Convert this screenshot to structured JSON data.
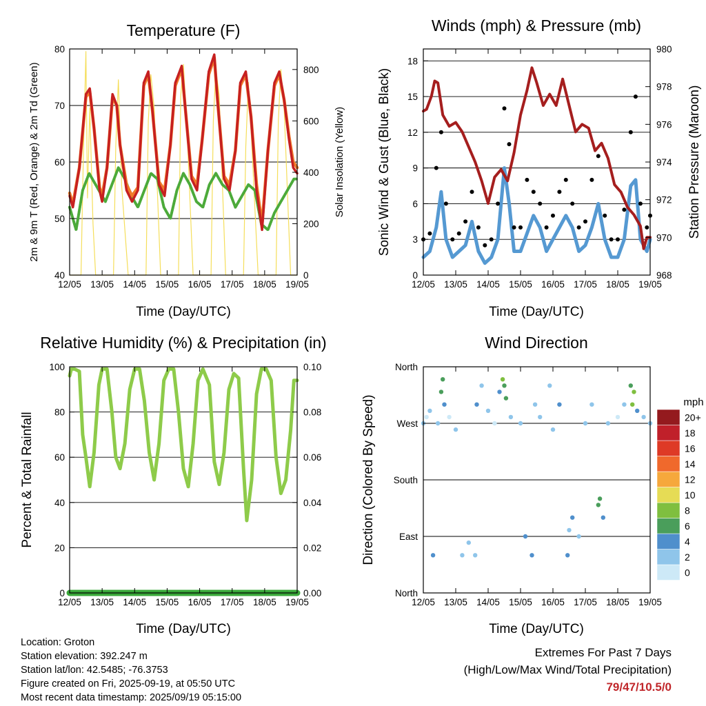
{
  "colors": {
    "temp_2m": "#c62020",
    "temp_9m": "#f07a2a",
    "dewpoint": "#4caa3a",
    "solar": "#f5de5a",
    "wind": "#5599d2",
    "gust": "#000000",
    "pressure": "#a51e1e",
    "rh": "#8ecb4a",
    "precip": "#3aa83a"
  },
  "x_ticks": [
    "12/05",
    "13/05",
    "14/05",
    "15/05",
    "16/05",
    "17/05",
    "18/05",
    "19/05"
  ],
  "panels": {
    "temperature": {
      "title": "Temperature (F)",
      "xlabel": "Time (Day/UTC)",
      "ylabel_left": "2m & 9m T (Red, Orange) & 2m Td (Green)",
      "ylabel_right": "Solar Insolation (Yellow)",
      "yticks_left": [
        "40",
        "50",
        "60",
        "70",
        "80"
      ],
      "yticks_right": [
        "0",
        "200",
        "400",
        "600",
        "800"
      ]
    },
    "winds": {
      "title": "Winds (mph) & Pressure (mb)",
      "xlabel": "Time (Day/UTC)",
      "ylabel_left": "Sonic Wind & Gust (Blue, Black)",
      "ylabel_right": "Station Pressure (Maroon)",
      "yticks_left": [
        "0",
        "3",
        "6",
        "9",
        "12",
        "15",
        "18"
      ],
      "yticks_right": [
        "968",
        "970",
        "972",
        "974",
        "976",
        "978",
        "980"
      ]
    },
    "humidity": {
      "title": "Relative Humidity (%) & Precipitation (in)",
      "xlabel": "Time (Day/UTC)",
      "ylabel_left": "Percent & Total Rainfall",
      "yticks_left": [
        "0",
        "20",
        "40",
        "60",
        "80",
        "100"
      ],
      "yticks_right": [
        "0.00",
        "0.02",
        "0.04",
        "0.06",
        "0.08",
        "0.10"
      ]
    },
    "direction": {
      "title": "Wind Direction",
      "xlabel": "Time (Day/UTC)",
      "ylabel_left": "Direction (Colored By Speed)",
      "yticks_left": [
        "North",
        "East",
        "South",
        "West",
        "North"
      ],
      "colorbar_title": "mph",
      "colorbar_labels": [
        "0",
        "2",
        "4",
        "6",
        "8",
        "10",
        "12",
        "14",
        "16",
        "18",
        "20+"
      ],
      "colorbar_colors": [
        "#cde9f7",
        "#8fc5ea",
        "#4f8fcc",
        "#4a9e5b",
        "#7fbf3f",
        "#e6dc55",
        "#f6a83c",
        "#f0692c",
        "#de3a26",
        "#c0202a",
        "#941a1e"
      ]
    }
  },
  "info": {
    "location": "Location: Groton",
    "elevation": "Station elevation: 392.247 m",
    "latlon": "Station lat/lon: 42.5485; -76.3753",
    "created": "Figure created on Fri, 2025-09-19, at 05:50 UTC",
    "recent": "Most recent data timestamp: 2025/09/19 05:15:00",
    "extremes_title": "Extremes For Past 7 Days",
    "extremes_subtitle": "(High/Low/Max Wind/Total Precipitation)",
    "extremes_value": "79/47/10.5/0"
  },
  "chart_data": [
    {
      "type": "line",
      "title": "Temperature (F)",
      "xlabel": "Time (Day/UTC)",
      "ylabel": "2m & 9m T (Red, Orange) & 2m Td (Green)",
      "y2label": "Solar Insolation (Yellow)",
      "x_range": [
        0,
        7
      ],
      "ylim": [
        40,
        80
      ],
      "y2lim": [
        0,
        880
      ],
      "grid": true,
      "series": [
        {
          "name": "2m T",
          "axis": "left",
          "x": [
            0,
            0.1,
            0.3,
            0.5,
            0.62,
            0.75,
            0.92,
            1.0,
            1.15,
            1.32,
            1.45,
            1.55,
            1.75,
            1.92,
            2.1,
            2.28,
            2.42,
            2.55,
            2.75,
            2.92,
            3.1,
            3.25,
            3.45,
            3.55,
            3.75,
            3.92,
            4.08,
            4.28,
            4.45,
            4.55,
            4.75,
            4.92,
            5.1,
            5.25,
            5.42,
            5.58,
            5.75,
            5.92,
            6.1,
            6.3,
            6.45,
            6.6,
            6.75,
            6.88,
            7.0
          ],
          "values": [
            54,
            52,
            59,
            72,
            73,
            66,
            55,
            53,
            59,
            72,
            70,
            63,
            55,
            53,
            55,
            74,
            76,
            69,
            56,
            54,
            63,
            74,
            77,
            70,
            57,
            55,
            64,
            76,
            79,
            71,
            57,
            55,
            62,
            74,
            76,
            68,
            55,
            48,
            62,
            74,
            76,
            71,
            64,
            59,
            58
          ]
        },
        {
          "name": "9m T",
          "axis": "left",
          "x": [
            0,
            0.1,
            0.3,
            0.5,
            0.62,
            0.75,
            0.92,
            1.0,
            1.15,
            1.32,
            1.45,
            1.55,
            1.75,
            1.92,
            2.1,
            2.28,
            2.42,
            2.55,
            2.75,
            2.92,
            3.1,
            3.25,
            3.45,
            3.55,
            3.75,
            3.92,
            4.08,
            4.28,
            4.45,
            4.55,
            4.75,
            4.92,
            5.1,
            5.25,
            5.42,
            5.58,
            5.75,
            5.92,
            6.1,
            6.3,
            6.45,
            6.6,
            6.75,
            6.88,
            7.0
          ],
          "values": [
            54.5,
            52.5,
            59,
            71.5,
            72.5,
            66,
            55.5,
            54,
            59,
            71.5,
            70,
            63,
            56,
            54,
            55.5,
            73.5,
            75.5,
            69,
            56.5,
            55,
            63,
            73.5,
            76.5,
            70,
            57.5,
            56,
            64,
            75.5,
            78.5,
            71,
            57.5,
            56,
            62,
            73.5,
            75.5,
            68,
            56,
            49,
            62,
            73.5,
            75.5,
            71,
            64.5,
            60,
            59
          ]
        },
        {
          "name": "2m Td",
          "axis": "left",
          "x": [
            0,
            0.2,
            0.4,
            0.6,
            0.9,
            1.1,
            1.3,
            1.5,
            1.7,
            1.9,
            2.1,
            2.3,
            2.5,
            2.7,
            2.9,
            3.1,
            3.3,
            3.5,
            3.7,
            3.9,
            4.1,
            4.3,
            4.5,
            4.7,
            4.9,
            5.1,
            5.3,
            5.5,
            5.7,
            5.9,
            6.1,
            6.3,
            6.5,
            6.7,
            6.9,
            7.0
          ],
          "values": [
            52,
            48,
            55,
            58,
            55,
            53,
            56,
            59,
            57,
            54,
            52,
            55,
            58,
            57,
            52,
            50,
            55,
            58,
            56,
            53,
            52,
            56,
            58,
            56,
            55,
            52,
            54,
            56,
            55,
            49,
            48,
            51,
            53,
            55,
            57,
            57
          ]
        },
        {
          "name": "Solar Insolation",
          "axis": "right",
          "x": [
            0,
            0.35,
            0.42,
            0.5,
            0.55,
            0.62,
            0.72,
            0.8,
            1.35,
            1.42,
            1.5,
            1.6,
            1.8,
            2.35,
            2.42,
            2.5,
            2.6,
            2.8,
            3.35,
            3.42,
            3.5,
            3.6,
            3.8,
            4.35,
            4.42,
            4.5,
            4.6,
            4.8,
            5.35,
            5.42,
            5.5,
            5.6,
            5.8,
            6.35,
            6.42,
            6.5,
            6.6,
            6.8,
            7.0
          ],
          "values": [
            0,
            0,
            450,
            870,
            300,
            650,
            200,
            0,
            0,
            500,
            760,
            350,
            0,
            0,
            600,
            780,
            650,
            0,
            0,
            700,
            820,
            600,
            0,
            0,
            600,
            800,
            700,
            0,
            0,
            500,
            750,
            520,
            0,
            0,
            600,
            800,
            650,
            0,
            0
          ]
        }
      ]
    },
    {
      "type": "line",
      "title": "Winds (mph) & Pressure (mb)",
      "xlabel": "Time (Day/UTC)",
      "ylabel": "Sonic Wind & Gust (Blue, Black)",
      "y2label": "Station Pressure (Maroon)",
      "x_range": [
        0,
        7
      ],
      "ylim": [
        0,
        19
      ],
      "y2lim": [
        968,
        980
      ],
      "grid": true,
      "series": [
        {
          "name": "Sonic Wind",
          "axis": "left",
          "x": [
            0,
            0.2,
            0.4,
            0.55,
            0.7,
            0.9,
            1.1,
            1.3,
            1.5,
            1.7,
            1.9,
            2.1,
            2.3,
            2.5,
            2.65,
            2.8,
            3.0,
            3.2,
            3.4,
            3.6,
            3.8,
            4.0,
            4.2,
            4.4,
            4.6,
            4.8,
            5.0,
            5.2,
            5.4,
            5.6,
            5.8,
            6.0,
            6.2,
            6.4,
            6.55,
            6.7,
            6.9,
            7.0
          ],
          "values": [
            1.5,
            2,
            4,
            7,
            3,
            1.5,
            2,
            2.5,
            4.5,
            2,
            1,
            1.5,
            3,
            9,
            6,
            2,
            2,
            3.5,
            5,
            4,
            2,
            3,
            4,
            5,
            4,
            2,
            2.5,
            4,
            6,
            3,
            1.5,
            1.5,
            3,
            7.5,
            8,
            3,
            2,
            3
          ]
        },
        {
          "name": "Gust",
          "axis": "left",
          "x": [
            0,
            0.2,
            0.4,
            0.55,
            0.7,
            0.9,
            1.1,
            1.3,
            1.5,
            1.7,
            1.9,
            2.1,
            2.3,
            2.5,
            2.65,
            2.8,
            3.0,
            3.2,
            3.4,
            3.6,
            3.8,
            4.0,
            4.2,
            4.4,
            4.6,
            4.8,
            5.0,
            5.2,
            5.4,
            5.6,
            5.8,
            6.0,
            6.2,
            6.4,
            6.55,
            6.7,
            6.9,
            7.0
          ],
          "values": [
            3,
            3.5,
            9,
            12,
            6,
            3,
            3.5,
            4.5,
            7,
            4,
            2.5,
            3,
            6,
            14,
            11,
            4,
            4,
            8,
            7,
            6,
            4,
            5,
            7,
            8,
            6,
            4,
            4.5,
            8,
            10,
            5,
            3,
            3,
            5.5,
            12,
            15,
            6,
            4,
            5
          ]
        },
        {
          "name": "Station Pressure",
          "axis": "right",
          "x": [
            0,
            0.1,
            0.25,
            0.35,
            0.45,
            0.6,
            0.8,
            1.0,
            1.2,
            1.4,
            1.6,
            1.8,
            2.0,
            2.2,
            2.4,
            2.6,
            2.8,
            3.0,
            3.2,
            3.35,
            3.5,
            3.7,
            3.9,
            4.1,
            4.3,
            4.5,
            4.7,
            4.9,
            5.1,
            5.3,
            5.5,
            5.7,
            5.9,
            6.1,
            6.3,
            6.5,
            6.7,
            6.8,
            6.9,
            7.0
          ],
          "values": [
            976.7,
            976.8,
            977.5,
            978.3,
            978.2,
            976.5,
            975.9,
            976.1,
            975.6,
            974.8,
            974.0,
            973.0,
            971.8,
            973.2,
            973.6,
            973.0,
            974.5,
            976.5,
            977.8,
            979.0,
            978.2,
            977.0,
            977.6,
            977.0,
            978.4,
            977.0,
            975.6,
            976.0,
            975.8,
            974.6,
            975.0,
            974.2,
            972.8,
            972.4,
            971.6,
            971.2,
            970.6,
            969.4,
            970.0,
            970.0
          ]
        }
      ]
    },
    {
      "type": "line",
      "title": "Relative Humidity (%) & Precipitation (in)",
      "xlabel": "Time (Day/UTC)",
      "ylabel": "Percent & Total Rainfall",
      "x_range": [
        0,
        7
      ],
      "ylim": [
        0,
        100
      ],
      "y2lim": [
        0,
        0.1
      ],
      "grid": true,
      "series": [
        {
          "name": "Relative Humidity",
          "axis": "left",
          "x": [
            0,
            0.05,
            0.15,
            0.3,
            0.4,
            0.5,
            0.62,
            0.75,
            0.9,
            1.0,
            1.15,
            1.3,
            1.42,
            1.55,
            1.7,
            1.85,
            2.0,
            2.15,
            2.3,
            2.45,
            2.6,
            2.75,
            2.9,
            3.05,
            3.2,
            3.35,
            3.5,
            3.65,
            3.8,
            3.95,
            4.1,
            4.3,
            4.45,
            4.6,
            4.75,
            4.9,
            5.05,
            5.2,
            5.35,
            5.45,
            5.6,
            5.75,
            5.9,
            6.05,
            6.2,
            6.35,
            6.5,
            6.65,
            6.8,
            6.9,
            7.0
          ],
          "values": [
            96,
            99,
            99,
            98,
            70,
            60,
            47,
            62,
            92,
            99,
            99,
            80,
            60,
            55,
            66,
            90,
            99,
            99,
            85,
            62,
            50,
            66,
            94,
            99,
            99,
            80,
            55,
            47,
            66,
            94,
            99,
            92,
            58,
            48,
            62,
            90,
            97,
            95,
            55,
            32,
            50,
            88,
            99,
            99,
            94,
            60,
            44,
            50,
            72,
            94,
            94
          ]
        },
        {
          "name": "Total Rainfall",
          "axis": "right",
          "x": [
            0,
            7
          ],
          "values": [
            0,
            0
          ]
        }
      ]
    },
    {
      "type": "scatter",
      "title": "Wind Direction",
      "xlabel": "Time (Day/UTC)",
      "ylabel": "Direction (Colored By Speed)",
      "x_range": [
        0,
        7
      ],
      "ylim": [
        0,
        360
      ],
      "y_tick_labels": [
        "North",
        "East",
        "South",
        "West",
        "North"
      ],
      "colorbar": {
        "title": "mph",
        "levels": [
          "0",
          "2",
          "4",
          "6",
          "8",
          "10",
          "12",
          "14",
          "16",
          "18",
          "20+"
        ]
      },
      "series": [
        {
          "name": "Direction",
          "x": [
            0.0,
            0.1,
            0.2,
            0.3,
            0.45,
            0.55,
            0.6,
            0.65,
            0.8,
            1.0,
            1.2,
            1.4,
            1.6,
            1.65,
            1.8,
            2.0,
            2.2,
            2.35,
            2.45,
            2.5,
            2.55,
            2.7,
            3.0,
            3.15,
            3.35,
            3.45,
            3.6,
            3.9,
            4.0,
            4.2,
            4.45,
            4.5,
            4.6,
            4.8,
            5.0,
            5.2,
            5.4,
            5.45,
            5.55,
            5.7,
            6.0,
            6.2,
            6.4,
            6.45,
            6.5,
            6.6,
            6.8,
            7.0
          ],
          "values": [
            270,
            280,
            290,
            60,
            270,
            320,
            340,
            300,
            280,
            260,
            60,
            80,
            60,
            300,
            330,
            290,
            270,
            320,
            340,
            330,
            310,
            280,
            270,
            90,
            60,
            300,
            280,
            330,
            260,
            300,
            60,
            100,
            120,
            90,
            270,
            300,
            140,
            150,
            120,
            270,
            280,
            300,
            330,
            300,
            320,
            290,
            280,
            270
          ],
          "speeds": [
            2,
            1,
            3,
            4,
            2,
            7,
            6,
            5,
            1,
            2,
            3,
            3,
            2,
            4,
            3,
            2,
            1,
            5,
            8,
            7,
            6,
            3,
            2,
            4,
            5,
            3,
            2,
            2,
            3,
            5,
            4,
            3,
            4,
            3,
            2,
            3,
            6,
            7,
            5,
            2,
            1,
            3,
            7,
            9,
            8,
            5,
            3,
            3
          ]
        }
      ]
    }
  ]
}
